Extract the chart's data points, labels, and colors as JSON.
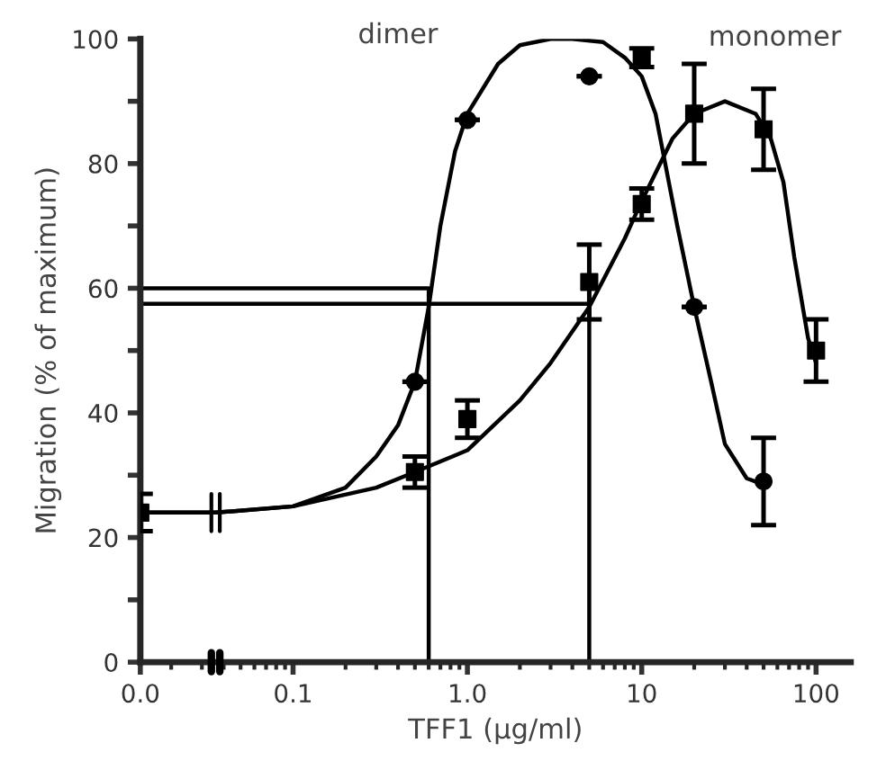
{
  "chart_data": {
    "type": "scatter",
    "xlabel": "TFF1 (µg/ml)",
    "ylabel": "Migration (% of maximum)",
    "log": "x",
    "xlim": [
      0.0133,
      158
    ],
    "xticks": [
      {
        "value": 0.0133,
        "label": "0.0"
      },
      0.1,
      {
        "value": 1,
        "label": "1.0"
      },
      10,
      100
    ],
    "ylim": [
      0,
      100
    ],
    "yticks": [
      0,
      {
        "value": 10,
        "label": null
      },
      20,
      {
        "value": 30,
        "label": null
      },
      40,
      {
        "value": 50,
        "label": null
      },
      60,
      {
        "value": 70,
        "label": null
      },
      80,
      {
        "value": 90,
        "label": null
      },
      100
    ],
    "grid": false,
    "legend": false,
    "series": [
      {
        "marker": "circle",
        "color": "#000000",
        "x": [
          0.5,
          1,
          5,
          20,
          50
        ],
        "values": [
          45,
          87,
          94,
          57,
          29
        ],
        "errors": [
          null,
          null,
          null,
          null,
          [
            22,
            36
          ]
        ]
      },
      {
        "marker": "square",
        "color": "#000000",
        "x": [
          0.0133,
          0.5,
          1,
          5,
          10,
          20,
          50,
          100
        ],
        "values": [
          24,
          30.5,
          39,
          61,
          73.5,
          88,
          85.5,
          50
        ],
        "errors": [
          3,
          [
            28,
            33
          ],
          [
            36,
            42
          ],
          [
            55,
            67
          ],
          [
            71,
            76
          ],
          [
            80,
            96
          ],
          [
            79,
            92
          ],
          [
            45,
            55
          ]
        ]
      },
      {
        "marker": "square",
        "color": "#000000",
        "x": [
          10
        ],
        "values": [
          97
        ],
        "errors": [
          [
            95.5,
            98.5
          ]
        ]
      },
      {
        "type": "line",
        "name": "dimer",
        "color": "#000000",
        "x": [
          0.0133,
          0.036,
          0.1,
          0.2,
          0.3,
          0.4,
          0.5,
          0.6,
          0.7,
          0.85,
          1,
          1.5,
          2,
          3,
          4,
          6,
          8,
          10,
          12,
          16,
          20,
          25,
          30,
          40,
          50
        ],
        "values": [
          24,
          24,
          25,
          28,
          33,
          38,
          45,
          57,
          70,
          82,
          88,
          96,
          99,
          100,
          100,
          99.5,
          97,
          94,
          88,
          70,
          57,
          45,
          35,
          29.5,
          28.5
        ]
      },
      {
        "type": "line",
        "name": "monomer",
        "color": "#000000",
        "x": [
          0.0133,
          0.036,
          0.1,
          0.3,
          0.5,
          1,
          2,
          3,
          5,
          8,
          10,
          15,
          20,
          30,
          45,
          55,
          65,
          75,
          90,
          100
        ],
        "values": [
          24,
          24,
          25,
          28,
          30.5,
          34,
          42,
          48,
          57,
          68,
          74,
          84,
          88,
          90,
          88,
          84,
          77,
          65,
          52,
          48
        ]
      },
      {
        "type": "line",
        "color": "#000000",
        "x": [
          0.0133,
          0.6,
          0.6
        ],
        "values": [
          60,
          60,
          0
        ]
      },
      {
        "type": "line",
        "color": "#000000",
        "x": [
          0.0133,
          5,
          5
        ],
        "values": [
          57.5,
          57.5,
          0
        ]
      }
    ]
  }
}
